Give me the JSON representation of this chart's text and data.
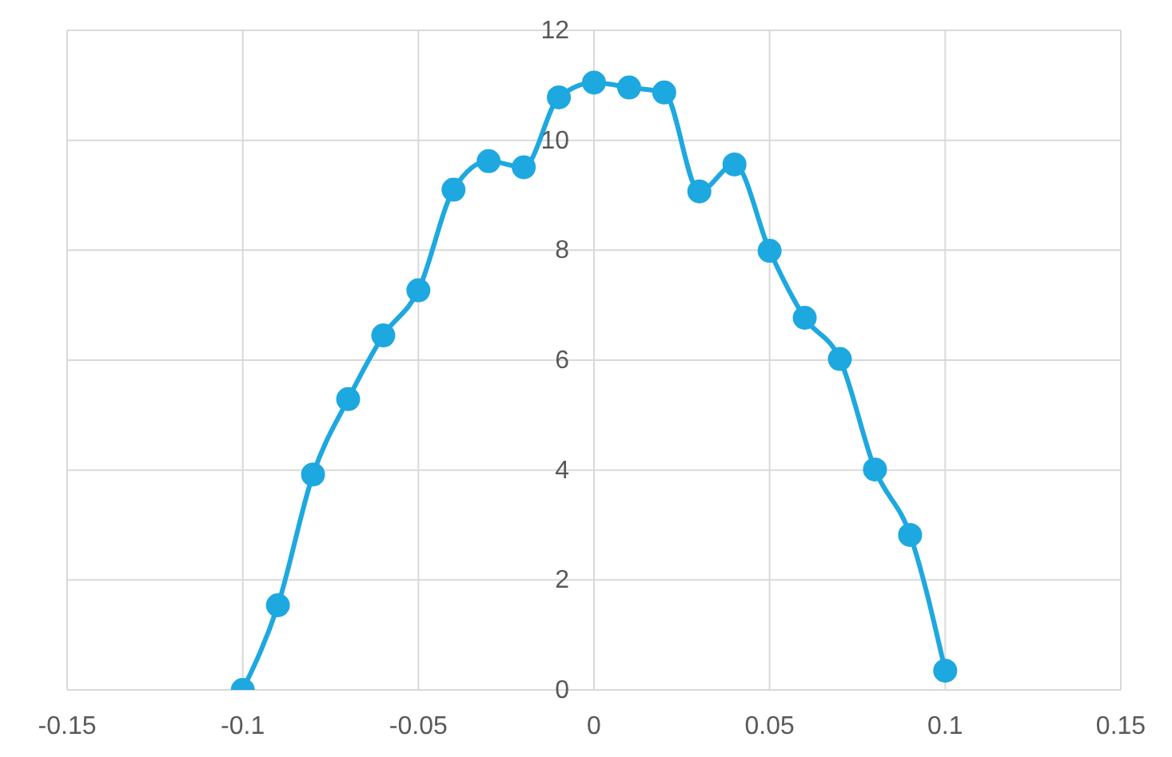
{
  "chart_data": {
    "type": "line",
    "x": [
      -0.1,
      -0.09,
      -0.08,
      -0.07,
      -0.06,
      -0.05,
      -0.04,
      -0.03,
      -0.02,
      -0.01,
      0,
      0.01,
      0.02,
      0.03,
      0.04,
      0.05,
      0.06,
      0.07,
      0.08,
      0.09,
      0.1
    ],
    "series": [
      {
        "color": "#1ea8e0",
        "values": [
          0,
          1.54,
          3.92,
          5.29,
          6.45,
          7.27,
          9.1,
          9.62,
          9.51,
          10.78,
          11.05,
          10.96,
          10.87,
          9.07,
          9.56,
          7.99,
          6.77,
          6.02,
          4.01,
          2.82,
          0.35
        ]
      }
    ],
    "xlim": [
      -0.15,
      0.15
    ],
    "xticks": [
      -0.15,
      -0.1,
      -0.05,
      0,
      0.05,
      0.1,
      0.15
    ],
    "ylim": [
      0,
      12
    ],
    "yticks": [
      0,
      2,
      4,
      6,
      8,
      10,
      12
    ],
    "grid": true,
    "marker": "circle",
    "legend": false
  }
}
